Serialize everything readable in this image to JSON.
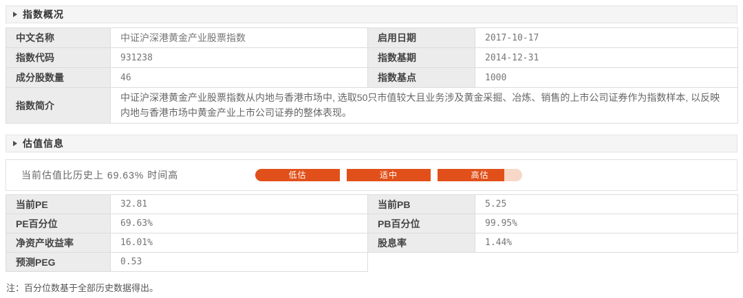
{
  "colors": {
    "accent": "#e1501a",
    "gauge_track": "#f7d8c8",
    "header_bg": "#f5f5f5",
    "label_cell_bg": "#ececec",
    "table_border": "#dcdcdc"
  },
  "icons": {
    "section_marker": "triangle-right"
  },
  "overview": {
    "title": "指数概况",
    "rows": [
      {
        "l1": "中文名称",
        "v1": "中证沪深港黄金产业股票指数",
        "l2": "启用日期",
        "v2": "2017-10-17"
      },
      {
        "l1": "指数代码",
        "v1": "931238",
        "l2": "指数基期",
        "v2": "2014-12-31"
      },
      {
        "l1": "成分股数量",
        "v1": "46",
        "l2": "指数基点",
        "v2": "1000"
      }
    ],
    "brief": {
      "label": "指数简介",
      "value": "中证沪深港黄金产业股票指数从内地与香港市场中, 选取50只市值较大且业务涉及黄金采掘、冶炼、销售的上市公司证券作为指数样本, 以反映内地与香港市场中黄金产业上市公司证券的整体表现。"
    }
  },
  "valuation": {
    "title": "估值信息",
    "summary": "当前估值比历史上 69.63% 时间高",
    "gauge": {
      "segments": [
        "低估",
        "适中",
        "高估"
      ],
      "fill_percent_of_last_segment": 79
    },
    "rows": [
      {
        "l1": "当前PE",
        "v1": "32.81",
        "l2": "当前PB",
        "v2": "5.25"
      },
      {
        "l1": "PE百分位",
        "v1": "69.63%",
        "l2": "PB百分位",
        "v2": "99.95%"
      },
      {
        "l1": "净资产收益率",
        "v1": "16.01%",
        "l2": "股息率",
        "v2": "1.44%"
      },
      {
        "l1": "预测PEG",
        "v1": "0.53"
      }
    ]
  },
  "note": "注：百分位数基于全部历史数据得出。"
}
